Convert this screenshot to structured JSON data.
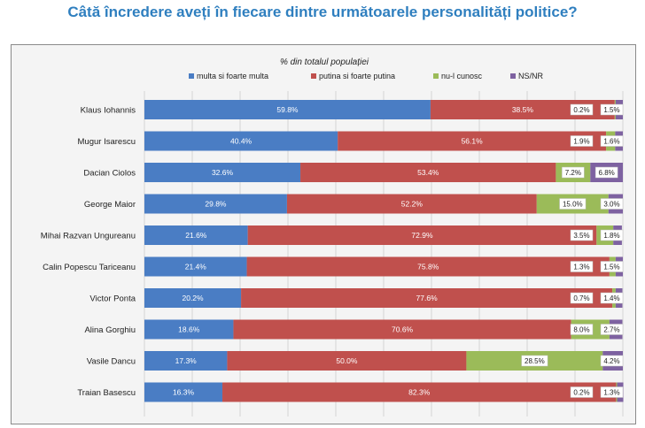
{
  "title": "Câtă încredere aveți în fiecare dintre următoarele personalități politice?",
  "chart_data": {
    "type": "bar",
    "orientation": "horizontal-stacked-100",
    "subtitle": "% din totalul populației",
    "legend_position": "top",
    "grid": true,
    "xlim": [
      0,
      100
    ],
    "colors": {
      "multa": "#4a7dc4",
      "putina": "#c0504d",
      "nucunosc": "#9bbb59",
      "nsnr": "#7e62a1"
    },
    "categories": [
      "Klaus Iohannis",
      "Mugur Isarescu",
      "Dacian Ciolos",
      "George Maior",
      "Mihai Razvan Ungureanu",
      "Calin Popescu Tariceanu",
      "Victor Ponta",
      "Alina Gorghiu",
      "Vasile Dancu",
      "Traian Basescu"
    ],
    "series": [
      {
        "key": "multa",
        "name": "multa si foarte multa",
        "values": [
          59.8,
          40.4,
          32.6,
          29.8,
          21.6,
          21.4,
          20.2,
          18.6,
          17.3,
          16.3
        ],
        "labels": [
          "59.8%",
          "40.4%",
          "32.6%",
          "29.8%",
          "21.6%",
          "21.4%",
          "20.2%",
          "18.6%",
          "17.3%",
          "16.3%"
        ]
      },
      {
        "key": "putina",
        "name": "putina si foarte putina",
        "values": [
          38.5,
          56.1,
          53.4,
          52.2,
          72.9,
          75.8,
          77.6,
          70.6,
          50.0,
          82.3
        ],
        "labels": [
          "38.5%",
          "56.1%",
          "53.4%",
          "52.2%",
          "72.9%",
          "75.8%",
          "77.6%",
          "70.6%",
          "50.0%",
          "82.3%"
        ]
      },
      {
        "key": "nucunosc",
        "name": "nu-l cunosc",
        "values": [
          0.2,
          1.9,
          7.2,
          15.0,
          3.5,
          1.3,
          0.7,
          8.0,
          28.5,
          0.2
        ],
        "labels": [
          "0.2%",
          "1.9%",
          "7.2%",
          "15.0%",
          "3.5%",
          "1.3%",
          "0.7%",
          "8.0%",
          "28.5%",
          "0.2%"
        ]
      },
      {
        "key": "nsnr",
        "name": "NS/NR",
        "values": [
          1.5,
          1.6,
          6.8,
          3.0,
          1.8,
          1.5,
          1.4,
          2.7,
          4.2,
          1.3
        ],
        "labels": [
          "1.5%",
          "1.6%",
          "6.8%",
          "3.0%",
          "1.8%",
          "1.5%",
          "1.4%",
          "2.7%",
          "4.2%",
          "1.3%"
        ]
      }
    ]
  }
}
